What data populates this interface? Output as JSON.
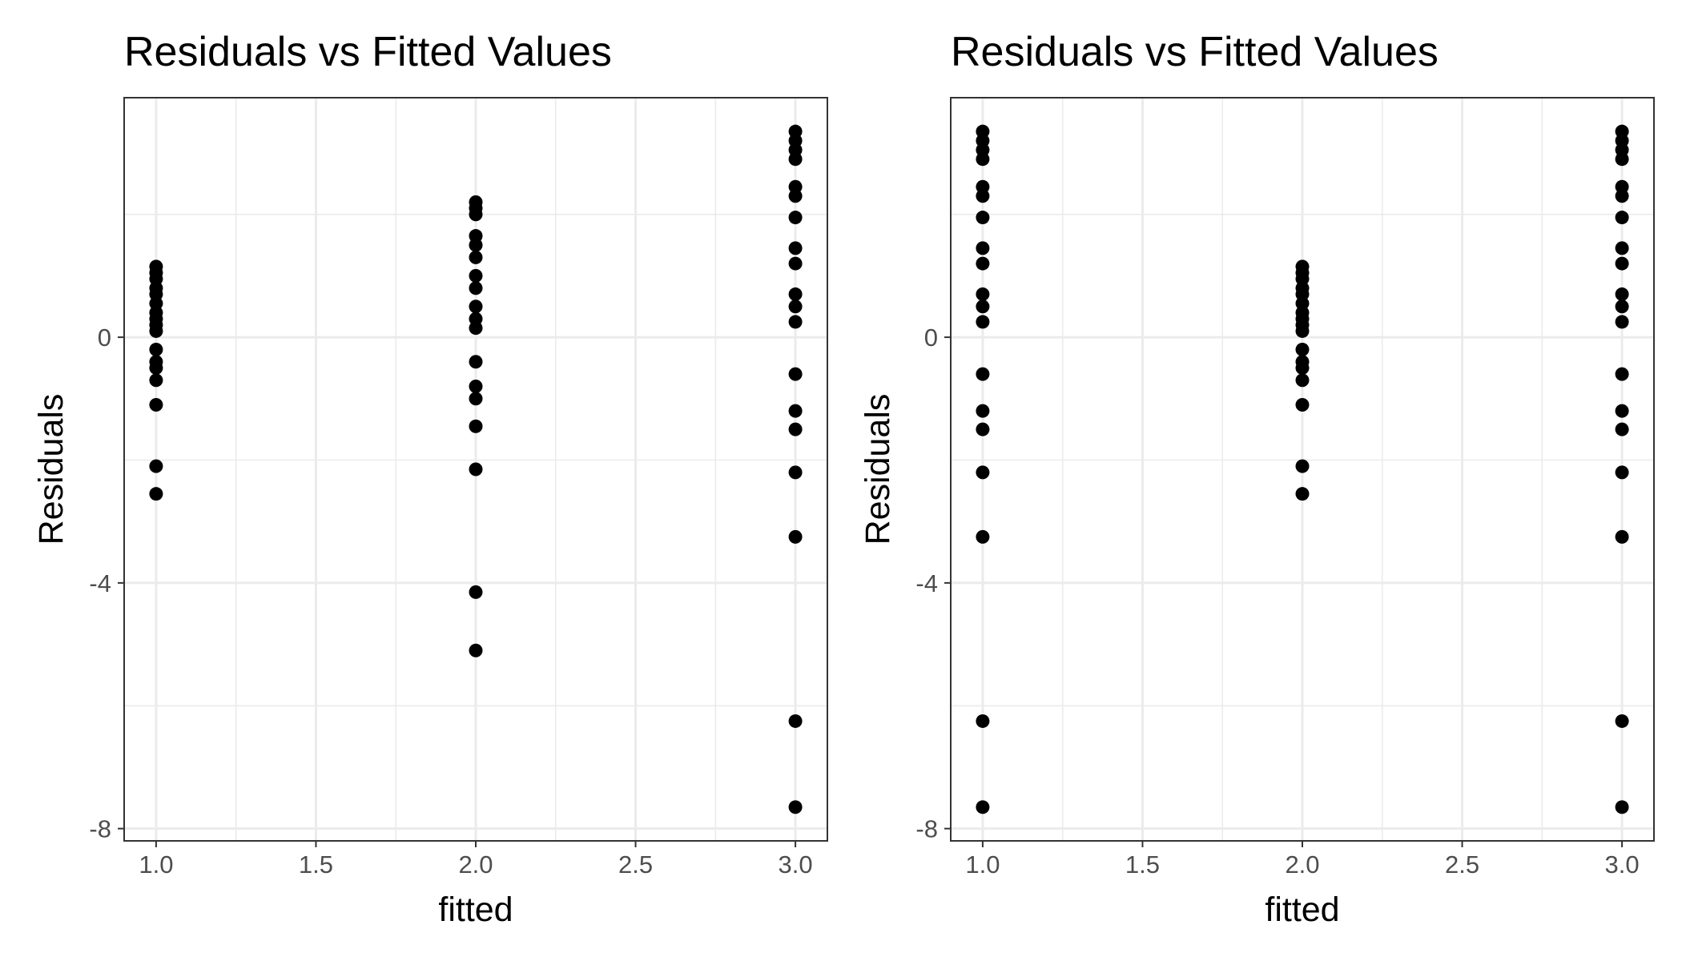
{
  "chart_data": [
    {
      "type": "scatter",
      "title": "Residuals vs Fitted Values",
      "xlabel": "fitted",
      "ylabel": "Residuals",
      "xlim": [
        0.9,
        3.1
      ],
      "ylim": [
        -8.2,
        3.9
      ],
      "x_ticks": [
        1.0,
        1.5,
        2.0,
        2.5,
        3.0
      ],
      "x_tick_labels": [
        "1.0",
        "1.5",
        "2.0",
        "2.5",
        "3.0"
      ],
      "y_ticks": [
        -8,
        -4,
        0
      ],
      "y_tick_labels": [
        "-8",
        "-4",
        "0"
      ],
      "grid": true,
      "points": [
        {
          "x": 1,
          "y": 1.15
        },
        {
          "x": 1,
          "y": 1.05
        },
        {
          "x": 1,
          "y": 0.95
        },
        {
          "x": 1,
          "y": 0.8
        },
        {
          "x": 1,
          "y": 0.7
        },
        {
          "x": 1,
          "y": 0.55
        },
        {
          "x": 1,
          "y": 0.4
        },
        {
          "x": 1,
          "y": 0.3
        },
        {
          "x": 1,
          "y": 0.2
        },
        {
          "x": 1,
          "y": 0.1
        },
        {
          "x": 1,
          "y": -0.2
        },
        {
          "x": 1,
          "y": -0.4
        },
        {
          "x": 1,
          "y": -0.5
        },
        {
          "x": 1,
          "y": -0.7
        },
        {
          "x": 1,
          "y": -1.1
        },
        {
          "x": 1,
          "y": -2.1
        },
        {
          "x": 1,
          "y": -2.55
        },
        {
          "x": 2,
          "y": 2.2
        },
        {
          "x": 2,
          "y": 2.1
        },
        {
          "x": 2,
          "y": 2.0
        },
        {
          "x": 2,
          "y": 1.65
        },
        {
          "x": 2,
          "y": 1.5
        },
        {
          "x": 2,
          "y": 1.3
        },
        {
          "x": 2,
          "y": 1.0
        },
        {
          "x": 2,
          "y": 0.8
        },
        {
          "x": 2,
          "y": 0.5
        },
        {
          "x": 2,
          "y": 0.3
        },
        {
          "x": 2,
          "y": 0.15
        },
        {
          "x": 2,
          "y": -0.4
        },
        {
          "x": 2,
          "y": -0.8
        },
        {
          "x": 2,
          "y": -1.0
        },
        {
          "x": 2,
          "y": -1.45
        },
        {
          "x": 2,
          "y": -2.15
        },
        {
          "x": 2,
          "y": -4.15
        },
        {
          "x": 2,
          "y": -5.1
        },
        {
          "x": 3,
          "y": 3.35
        },
        {
          "x": 3,
          "y": 3.2
        },
        {
          "x": 3,
          "y": 3.05
        },
        {
          "x": 3,
          "y": 2.9
        },
        {
          "x": 3,
          "y": 2.45
        },
        {
          "x": 3,
          "y": 2.3
        },
        {
          "x": 3,
          "y": 1.95
        },
        {
          "x": 3,
          "y": 1.45
        },
        {
          "x": 3,
          "y": 1.2
        },
        {
          "x": 3,
          "y": 0.7
        },
        {
          "x": 3,
          "y": 0.5
        },
        {
          "x": 3,
          "y": 0.25
        },
        {
          "x": 3,
          "y": -0.6
        },
        {
          "x": 3,
          "y": -1.2
        },
        {
          "x": 3,
          "y": -1.5
        },
        {
          "x": 3,
          "y": -2.2
        },
        {
          "x": 3,
          "y": -3.25
        },
        {
          "x": 3,
          "y": -6.25
        },
        {
          "x": 3,
          "y": -7.65
        }
      ]
    },
    {
      "type": "scatter",
      "title": "Residuals vs Fitted Values",
      "xlabel": "fitted",
      "ylabel": "Residuals",
      "xlim": [
        0.9,
        3.1
      ],
      "ylim": [
        -8.2,
        3.9
      ],
      "x_ticks": [
        1.0,
        1.5,
        2.0,
        2.5,
        3.0
      ],
      "x_tick_labels": [
        "1.0",
        "1.5",
        "2.0",
        "2.5",
        "3.0"
      ],
      "y_ticks": [
        -8,
        -4,
        0
      ],
      "y_tick_labels": [
        "-8",
        "-4",
        "0"
      ],
      "grid": true,
      "points": [
        {
          "x": 1,
          "y": 3.35
        },
        {
          "x": 1,
          "y": 3.2
        },
        {
          "x": 1,
          "y": 3.05
        },
        {
          "x": 1,
          "y": 2.9
        },
        {
          "x": 1,
          "y": 2.45
        },
        {
          "x": 1,
          "y": 2.3
        },
        {
          "x": 1,
          "y": 1.95
        },
        {
          "x": 1,
          "y": 1.45
        },
        {
          "x": 1,
          "y": 1.2
        },
        {
          "x": 1,
          "y": 0.7
        },
        {
          "x": 1,
          "y": 0.5
        },
        {
          "x": 1,
          "y": 0.25
        },
        {
          "x": 1,
          "y": -0.6
        },
        {
          "x": 1,
          "y": -1.2
        },
        {
          "x": 1,
          "y": -1.5
        },
        {
          "x": 1,
          "y": -2.2
        },
        {
          "x": 1,
          "y": -3.25
        },
        {
          "x": 1,
          "y": -6.25
        },
        {
          "x": 1,
          "y": -7.65
        },
        {
          "x": 2,
          "y": 1.15
        },
        {
          "x": 2,
          "y": 1.05
        },
        {
          "x": 2,
          "y": 0.95
        },
        {
          "x": 2,
          "y": 0.8
        },
        {
          "x": 2,
          "y": 0.7
        },
        {
          "x": 2,
          "y": 0.55
        },
        {
          "x": 2,
          "y": 0.4
        },
        {
          "x": 2,
          "y": 0.3
        },
        {
          "x": 2,
          "y": 0.2
        },
        {
          "x": 2,
          "y": 0.1
        },
        {
          "x": 2,
          "y": -0.2
        },
        {
          "x": 2,
          "y": -0.4
        },
        {
          "x": 2,
          "y": -0.5
        },
        {
          "x": 2,
          "y": -0.7
        },
        {
          "x": 2,
          "y": -1.1
        },
        {
          "x": 2,
          "y": -2.1
        },
        {
          "x": 2,
          "y": -2.55
        },
        {
          "x": 3,
          "y": 3.35
        },
        {
          "x": 3,
          "y": 3.2
        },
        {
          "x": 3,
          "y": 3.05
        },
        {
          "x": 3,
          "y": 2.9
        },
        {
          "x": 3,
          "y": 2.45
        },
        {
          "x": 3,
          "y": 2.3
        },
        {
          "x": 3,
          "y": 1.95
        },
        {
          "x": 3,
          "y": 1.45
        },
        {
          "x": 3,
          "y": 1.2
        },
        {
          "x": 3,
          "y": 0.7
        },
        {
          "x": 3,
          "y": 0.5
        },
        {
          "x": 3,
          "y": 0.25
        },
        {
          "x": 3,
          "y": -0.6
        },
        {
          "x": 3,
          "y": -1.2
        },
        {
          "x": 3,
          "y": -1.5
        },
        {
          "x": 3,
          "y": -2.2
        },
        {
          "x": 3,
          "y": -3.25
        },
        {
          "x": 3,
          "y": -6.25
        },
        {
          "x": 3,
          "y": -7.65
        }
      ]
    }
  ]
}
